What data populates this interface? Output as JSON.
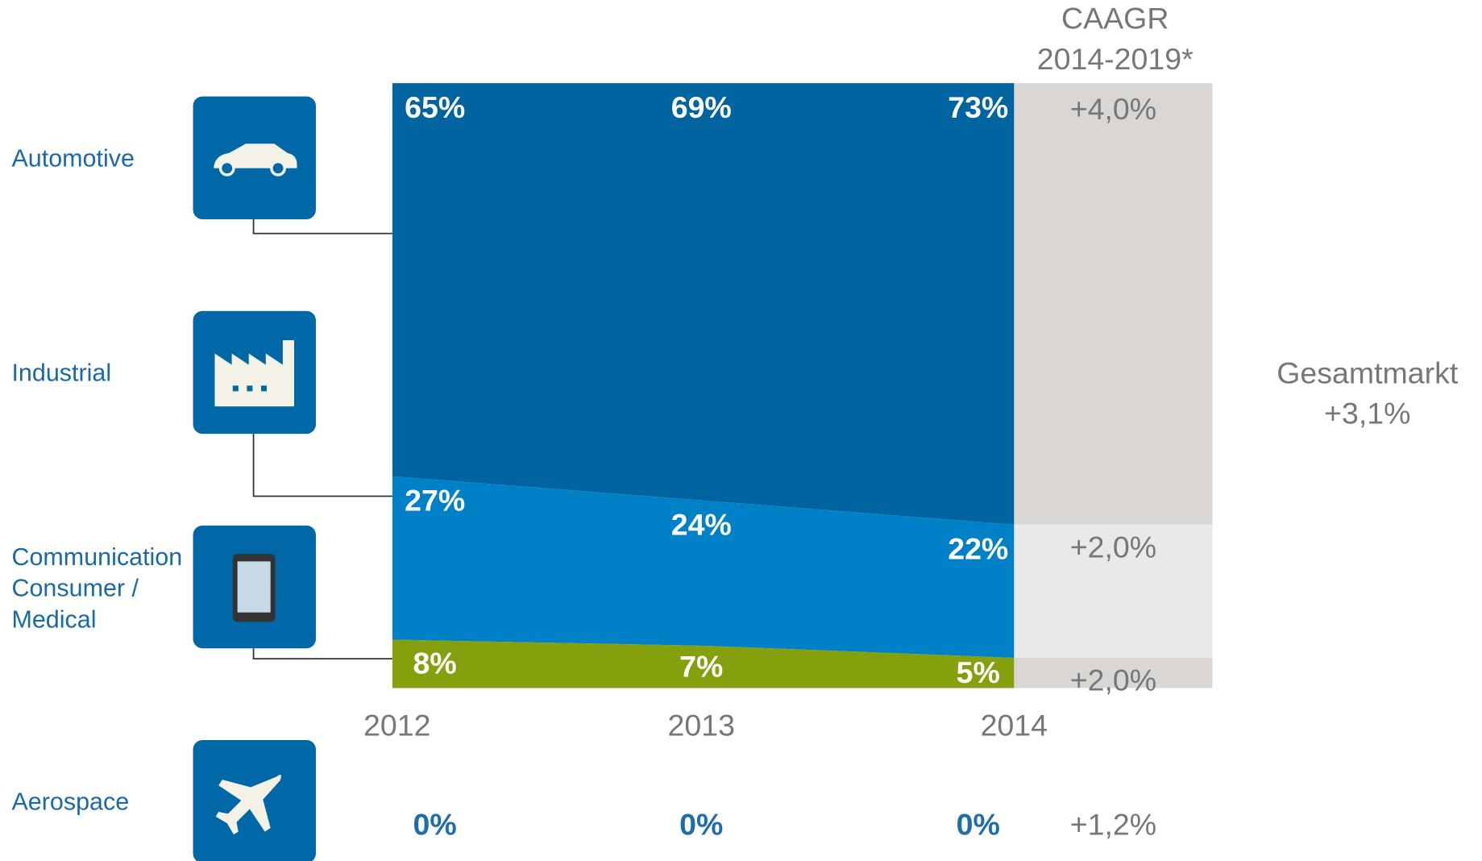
{
  "chart_data": {
    "type": "area",
    "title": "CAAGR",
    "subtitle": "2014-2019*",
    "categories": [
      "2012",
      "2013",
      "2014"
    ],
    "ylim": [
      0,
      100
    ],
    "series": [
      {
        "name": "Automotive",
        "color": "#0064a0",
        "values": [
          65,
          69,
          73
        ],
        "value_labels": [
          "65%",
          "69%",
          "73%"
        ],
        "caagr": "+4,0%",
        "caagr_color": "#d9d6d3"
      },
      {
        "name": "Industrial",
        "color": "#0080c6",
        "values": [
          27,
          24,
          22
        ],
        "value_labels": [
          "27%",
          "24%",
          "22%"
        ],
        "caagr": "+2,0%",
        "caagr_color": "#ebe9e7"
      },
      {
        "name": "Communication Consumer / Medical",
        "color": "#84a00c",
        "values": [
          8,
          7,
          5
        ],
        "value_labels": [
          "8%",
          "7%",
          "5%"
        ],
        "caagr": "+2,0%",
        "caagr_color": "#d9d6d3"
      },
      {
        "name": "Aerospace",
        "color": "#1f6ea8",
        "values": [
          0,
          0,
          0
        ],
        "value_labels": [
          "0%",
          "0%",
          "0%"
        ],
        "caagr": "+1,2%",
        "caagr_color": "#ffffff"
      }
    ],
    "total_label": "Gesamtmarkt",
    "total_caagr": "+3,1%"
  }
}
